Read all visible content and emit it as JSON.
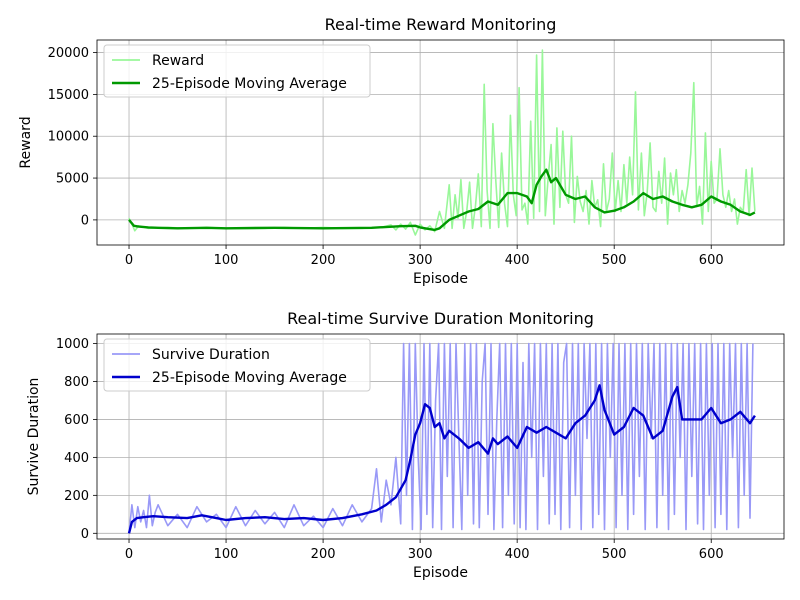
{
  "chart_data": [
    {
      "type": "line",
      "title": "Real-time Reward Monitoring",
      "xlabel": "Episode",
      "ylabel": "Reward",
      "xlim": [
        -33,
        675
      ],
      "ylim": [
        -3000,
        21500
      ],
      "xticks": [
        0,
        100,
        200,
        300,
        400,
        500,
        600
      ],
      "yticks": [
        0,
        5000,
        10000,
        15000,
        20000
      ],
      "grid": true,
      "legend_position": "top-left",
      "series": [
        {
          "name": "Reward",
          "color": "#99f799",
          "x": [
            0,
            3,
            6,
            10,
            20,
            40,
            60,
            80,
            100,
            120,
            140,
            160,
            180,
            200,
            220,
            240,
            260,
            270,
            275,
            280,
            285,
            290,
            295,
            300,
            305,
            310,
            315,
            320,
            325,
            330,
            333,
            336,
            339,
            342,
            345,
            348,
            351,
            354,
            357,
            360,
            363,
            366,
            369,
            372,
            375,
            378,
            381,
            384,
            387,
            390,
            393,
            396,
            399,
            402,
            405,
            408,
            411,
            414,
            417,
            420,
            423,
            426,
            429,
            432,
            435,
            438,
            441,
            444,
            447,
            450,
            453,
            456,
            459,
            462,
            465,
            468,
            471,
            474,
            477,
            480,
            483,
            486,
            489,
            492,
            495,
            498,
            501,
            504,
            507,
            510,
            513,
            516,
            519,
            522,
            525,
            528,
            531,
            534,
            537,
            540,
            543,
            546,
            549,
            552,
            555,
            558,
            561,
            564,
            567,
            570,
            573,
            576,
            579,
            582,
            585,
            588,
            591,
            594,
            597,
            600,
            603,
            606,
            609,
            612,
            615,
            618,
            621,
            624,
            627,
            630,
            633,
            636,
            639,
            642,
            645
          ],
          "y": [
            200,
            -500,
            -1300,
            -700,
            -1000,
            -900,
            -1000,
            -900,
            -1000,
            -1000,
            -1000,
            -900,
            -1000,
            -900,
            -1000,
            -1000,
            -900,
            -600,
            -1200,
            -500,
            -1100,
            -300,
            -1800,
            -500,
            -1200,
            -700,
            -1400,
            1000,
            -1000,
            4200,
            -1000,
            3000,
            200,
            4800,
            -1000,
            1000,
            4500,
            -1000,
            1600,
            5500,
            -800,
            16200,
            3500,
            -1000,
            11500,
            4700,
            -900,
            8000,
            2000,
            -800,
            12500,
            3000,
            500,
            15800,
            1200,
            2000,
            -500,
            11800,
            200,
            19700,
            1000,
            20300,
            500,
            5100,
            9000,
            -500,
            11000,
            1500,
            10600,
            3000,
            2000,
            10000,
            -300,
            5200,
            2200,
            1000,
            3500,
            -500,
            4700,
            1500,
            2400,
            -800,
            6700,
            1000,
            2500,
            8000,
            1000,
            4700,
            1000,
            6600,
            2000,
            7500,
            3000,
            15300,
            1200,
            8000,
            500,
            3300,
            9200,
            1500,
            1000,
            5800,
            2000,
            7400,
            -500,
            5600,
            3000,
            6000,
            1000,
            3500,
            2000,
            4200,
            8000,
            16400,
            1600,
            4000,
            -500,
            10400,
            1000,
            7000,
            2000,
            2500,
            8500,
            3000,
            1500,
            3500,
            1000,
            2500,
            -500,
            1500,
            1000,
            6000,
            500,
            6200,
            1000
          ]
        },
        {
          "name": "25-Episode Moving Average",
          "color": "#009900",
          "x": [
            0,
            5,
            10,
            20,
            30,
            50,
            80,
            100,
            150,
            200,
            250,
            280,
            295,
            300,
            305,
            315,
            320,
            330,
            340,
            350,
            360,
            370,
            380,
            390,
            400,
            410,
            415,
            420,
            425,
            430,
            435,
            440,
            450,
            460,
            470,
            480,
            490,
            500,
            510,
            520,
            530,
            540,
            550,
            560,
            570,
            580,
            590,
            600,
            610,
            620,
            630,
            640,
            645
          ],
          "y": [
            0,
            -700,
            -800,
            -900,
            -950,
            -1000,
            -950,
            -1000,
            -950,
            -1000,
            -950,
            -750,
            -700,
            -900,
            -1000,
            -1200,
            -1000,
            0,
            500,
            1000,
            1300,
            2200,
            1800,
            3200,
            3200,
            2800,
            2000,
            4200,
            5200,
            6000,
            4500,
            5000,
            3000,
            2500,
            2800,
            1500,
            900,
            1100,
            1500,
            2200,
            3200,
            2500,
            2800,
            2200,
            1800,
            1500,
            1800,
            2800,
            2200,
            1800,
            1000,
            600,
            900
          ]
        }
      ]
    },
    {
      "type": "line",
      "title": "Real-time Survive Duration Monitoring",
      "xlabel": "Episode",
      "ylabel": "Survive Duration",
      "xlim": [
        -33,
        675
      ],
      "ylim": [
        -30,
        1050
      ],
      "xticks": [
        0,
        100,
        200,
        300,
        400,
        500,
        600
      ],
      "yticks": [
        0,
        200,
        400,
        600,
        800,
        1000
      ],
      "grid": true,
      "legend_position": "top-left",
      "series": [
        {
          "name": "Survive Duration",
          "color": "#9999f7",
          "x": [
            0,
            3,
            6,
            9,
            12,
            15,
            18,
            21,
            24,
            27,
            30,
            40,
            50,
            60,
            70,
            80,
            90,
            100,
            110,
            120,
            130,
            140,
            150,
            160,
            170,
            180,
            190,
            200,
            210,
            220,
            230,
            240,
            250,
            255,
            260,
            265,
            270,
            275,
            280,
            283,
            286,
            289,
            292,
            295,
            298,
            301,
            304,
            307,
            310,
            313,
            316,
            319,
            322,
            325,
            328,
            331,
            334,
            337,
            340,
            343,
            346,
            349,
            352,
            355,
            358,
            361,
            364,
            367,
            370,
            373,
            376,
            379,
            382,
            385,
            388,
            391,
            394,
            397,
            400,
            403,
            406,
            409,
            412,
            415,
            418,
            421,
            424,
            427,
            430,
            433,
            436,
            439,
            442,
            445,
            448,
            451,
            454,
            457,
            460,
            463,
            466,
            469,
            472,
            475,
            478,
            481,
            484,
            487,
            490,
            493,
            496,
            499,
            502,
            505,
            508,
            511,
            514,
            517,
            520,
            523,
            526,
            529,
            532,
            535,
            538,
            541,
            544,
            547,
            550,
            553,
            556,
            559,
            562,
            565,
            568,
            571,
            574,
            577,
            580,
            583,
            586,
            589,
            592,
            595,
            598,
            601,
            604,
            607,
            610,
            613,
            616,
            619,
            622,
            625,
            628,
            631,
            634,
            637,
            640,
            643
          ],
          "y": [
            0,
            150,
            30,
            140,
            60,
            120,
            30,
            200,
            40,
            110,
            150,
            40,
            100,
            30,
            140,
            60,
            100,
            30,
            140,
            40,
            120,
            50,
            110,
            30,
            150,
            40,
            90,
            30,
            130,
            40,
            150,
            60,
            130,
            340,
            60,
            280,
            150,
            400,
            50,
            1000,
            200,
            1000,
            20,
            1000,
            400,
            20,
            1000,
            100,
            1000,
            30,
            700,
            1000,
            20,
            1000,
            300,
            1000,
            30,
            1000,
            500,
            20,
            1000,
            200,
            1000,
            50,
            1000,
            30,
            800,
            1000,
            100,
            1000,
            20,
            600,
            1000,
            30,
            1000,
            200,
            1000,
            50,
            1000,
            30,
            900,
            20,
            1000,
            400,
            1000,
            20,
            1000,
            300,
            1000,
            50,
            1000,
            100,
            1000,
            20,
            900,
            1000,
            30,
            1000,
            200,
            1000,
            20,
            1000,
            500,
            1000,
            30,
            1000,
            100,
            1000,
            20,
            1000,
            400,
            1000,
            30,
            1000,
            200,
            1000,
            20,
            1000,
            100,
            1000,
            300,
            1000,
            20,
            1000,
            500,
            1000,
            30,
            1000,
            200,
            1000,
            20,
            1000,
            100,
            1000,
            400,
            1000,
            20,
            1000,
            300,
            1000,
            50,
            1000,
            20,
            1000,
            200,
            1000,
            30,
            1000,
            100,
            1000,
            20,
            1000,
            400,
            1000,
            30,
            1000,
            200,
            1000,
            80,
            1000
          ]
        },
        {
          "name": "25-Episode Moving Average",
          "color": "#0000cc",
          "x": [
            0,
            3,
            8,
            15,
            25,
            40,
            60,
            75,
            90,
            100,
            120,
            140,
            160,
            180,
            200,
            220,
            240,
            255,
            265,
            275,
            285,
            290,
            295,
            300,
            305,
            310,
            315,
            320,
            325,
            330,
            340,
            350,
            360,
            370,
            375,
            380,
            390,
            400,
            410,
            420,
            430,
            440,
            450,
            460,
            470,
            480,
            485,
            490,
            500,
            510,
            520,
            530,
            540,
            550,
            560,
            565,
            570,
            580,
            590,
            600,
            610,
            620,
            630,
            640,
            645
          ],
          "y": [
            0,
            60,
            80,
            85,
            90,
            85,
            80,
            95,
            80,
            70,
            80,
            85,
            75,
            80,
            70,
            80,
            100,
            120,
            150,
            190,
            280,
            390,
            520,
            580,
            680,
            660,
            560,
            580,
            500,
            540,
            500,
            450,
            480,
            420,
            500,
            470,
            510,
            450,
            560,
            530,
            560,
            530,
            500,
            580,
            620,
            700,
            780,
            650,
            520,
            560,
            660,
            620,
            500,
            540,
            720,
            770,
            600,
            600,
            600,
            660,
            580,
            600,
            640,
            580,
            620
          ]
        }
      ]
    }
  ]
}
